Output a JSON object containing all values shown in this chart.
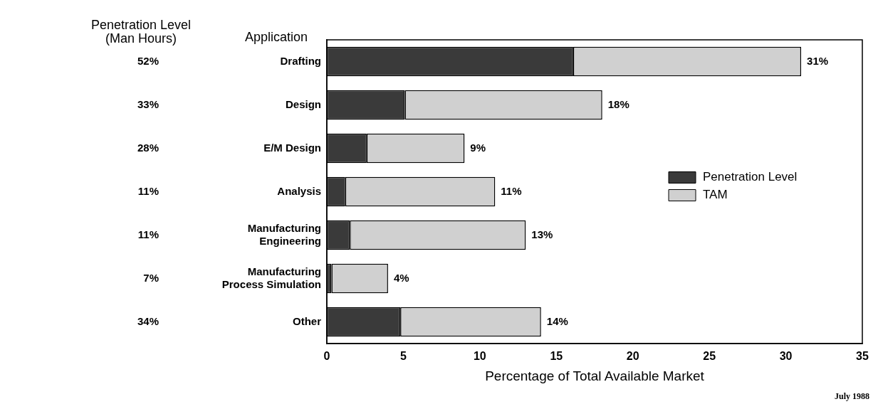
{
  "chart_data": {
    "type": "bar",
    "orientation": "horizontal",
    "stacked": true,
    "xlabel": "Percentage of Total Available Market",
    "categories": [
      "Drafting",
      "Design",
      "E/M Design",
      "Analysis",
      "Manufacturing Engineering",
      "Manufacturing Process Simulation",
      "Other"
    ],
    "series": [
      {
        "name": "Penetration Level",
        "color": "#3a3a3a",
        "values": [
          16.1,
          5.1,
          2.6,
          1.2,
          1.5,
          0.3,
          4.8
        ]
      },
      {
        "name": "TAM",
        "color": "#d0d0d0",
        "values": [
          14.9,
          12.9,
          6.4,
          9.8,
          11.5,
          3.7,
          9.2
        ]
      }
    ],
    "totals": [
      "31%",
      "18%",
      "9%",
      "11%",
      "13%",
      "4%",
      "14%"
    ],
    "xlim": [
      0,
      35
    ],
    "xticks": [
      0,
      5,
      10,
      15,
      20,
      25,
      30,
      35
    ],
    "grid": false,
    "legend": "right",
    "annotations": [
      "Application",
      "Penetration Level (Man Hours)",
      "52%",
      "33%",
      "28%",
      "11%",
      "11%",
      "7%",
      "34%",
      "July 1988"
    ]
  }
}
